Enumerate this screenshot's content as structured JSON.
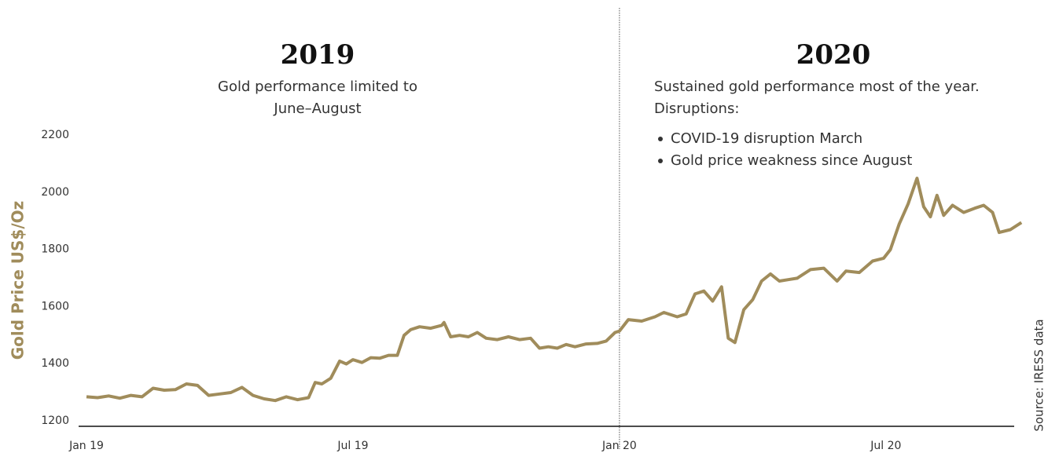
{
  "chart_data": {
    "type": "line",
    "headings": [
      {
        "title": "2019",
        "lines": [
          "Gold performance limited to",
          "June–August"
        ]
      },
      {
        "title": "2020",
        "lines": [
          "Sustained gold performance most of the year.",
          "Disruptions:"
        ],
        "bullets": [
          "COVID-19 disruption March",
          "Gold price weakness since August"
        ]
      }
    ],
    "y_label": "Gold Price US$/Oz",
    "source": "Source: IRESS data",
    "color": "#a08c5b",
    "x": [
      0,
      0.25,
      0.5,
      0.75,
      1,
      1.25,
      1.5,
      1.75,
      2,
      2.25,
      2.5,
      2.75,
      3,
      3.25,
      3.5,
      3.75,
      4,
      4.25,
      4.5,
      4.75,
      5,
      5.15,
      5.3,
      5.5,
      5.7,
      5.85,
      6,
      6.2,
      6.4,
      6.6,
      6.8,
      7,
      7.15,
      7.3,
      7.5,
      7.75,
      8,
      8.05,
      8.2,
      8.4,
      8.6,
      8.8,
      9,
      9.25,
      9.5,
      9.75,
      10,
      10.2,
      10.4,
      10.6,
      10.8,
      11,
      11.25,
      11.5,
      11.7,
      11.9,
      12,
      12.2,
      12.5,
      12.8,
      13,
      13.3,
      13.5,
      13.7,
      13.9,
      14.1,
      14.3,
      14.45,
      14.6,
      14.8,
      15,
      15.2,
      15.4,
      15.6,
      15.8,
      16,
      16.3,
      16.6,
      16.9,
      17.1,
      17.4,
      17.7,
      17.95,
      18.1,
      18.3,
      18.5,
      18.7,
      18.85,
      19,
      19.15,
      19.3,
      19.5,
      19.75,
      20,
      20.2,
      20.4,
      20.55,
      20.8,
      21.05
    ],
    "values": [
      1295,
      1292,
      1298,
      1290,
      1300,
      1295,
      1325,
      1318,
      1320,
      1340,
      1335,
      1300,
      1305,
      1310,
      1328,
      1300,
      1288,
      1282,
      1295,
      1285,
      1292,
      1345,
      1340,
      1360,
      1420,
      1410,
      1425,
      1415,
      1432,
      1430,
      1440,
      1440,
      1510,
      1530,
      1540,
      1535,
      1545,
      1555,
      1505,
      1510,
      1505,
      1520,
      1500,
      1495,
      1505,
      1495,
      1500,
      1465,
      1470,
      1465,
      1478,
      1470,
      1480,
      1482,
      1490,
      1520,
      1525,
      1565,
      1560,
      1575,
      1590,
      1575,
      1585,
      1655,
      1665,
      1630,
      1680,
      1500,
      1485,
      1600,
      1635,
      1700,
      1725,
      1700,
      1705,
      1710,
      1740,
      1745,
      1700,
      1735,
      1730,
      1770,
      1780,
      1810,
      1900,
      1970,
      2060,
      1960,
      1925,
      2000,
      1930,
      1965,
      1940,
      1955,
      1965,
      1940,
      1870,
      1880,
      1905
    ],
    "xlim": [
      -0.2,
      21.1
    ],
    "xticks": [
      {
        "value": 0,
        "label": "Jan 19"
      },
      {
        "value": 6,
        "label": "Jul 19"
      },
      {
        "value": 12,
        "label": "Jan 20"
      },
      {
        "value": 18,
        "label": "Jul 20"
      }
    ],
    "ylim": [
      1200,
      2200
    ],
    "yticks": [
      1200,
      1400,
      1600,
      1800,
      2000,
      2200
    ]
  }
}
